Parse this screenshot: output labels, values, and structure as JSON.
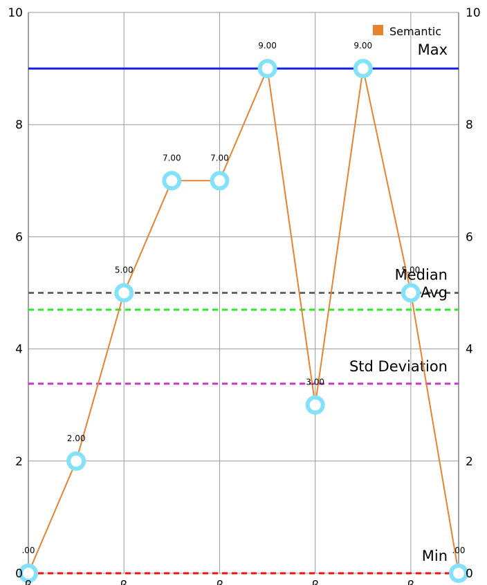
{
  "chart_data": {
    "type": "line",
    "title": "",
    "xlabel": "",
    "ylabel": "",
    "ylim": [
      0,
      10
    ],
    "y_ticks": [
      "0",
      "2",
      "4",
      "6",
      "8",
      "10"
    ],
    "grid": true,
    "legend_position": "top-right",
    "series": [
      {
        "name": "Semantic",
        "color": "#E8822E",
        "marker_color": "#84E1FA",
        "values": [
          0,
          2,
          5,
          7,
          7,
          9,
          3,
          9,
          5,
          0
        ],
        "labels": [
          ".00",
          "2.00",
          "5.00",
          "7.00",
          "7.00",
          "9.00",
          "3.00",
          "9.00",
          "5.00",
          ".00"
        ]
      }
    ],
    "x_tick_marks": [
      "ꞵ",
      "ꞵ",
      "ꞵ",
      "ꞵ",
      "ꞵ"
    ],
    "reference_lines": [
      {
        "label": "Max",
        "value": 9.0,
        "color": "#1020E6",
        "style": "solid"
      },
      {
        "label": "Median",
        "value": 5.0,
        "color": "#666666",
        "style": "dashed"
      },
      {
        "label": "Avg",
        "value": 4.7,
        "color": "#22EE22",
        "style": "dashed"
      },
      {
        "label": "Std Deviation",
        "value": 3.38,
        "color": "#CC33CC",
        "style": "dashed"
      },
      {
        "label": "Min",
        "value": 0.0,
        "color": "#EE1111",
        "style": "dashed"
      }
    ],
    "colors": {
      "background": "#FFFFFF",
      "grid": "#9A9A9A"
    }
  }
}
